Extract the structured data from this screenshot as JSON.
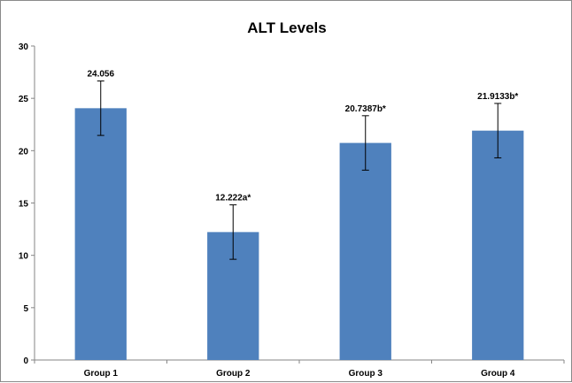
{
  "chart_data": {
    "type": "bar",
    "title": "ALT Levels",
    "xlabel": "",
    "ylabel": "",
    "categories": [
      "Group 1",
      "Group 2",
      "Group 3",
      "Group 4"
    ],
    "values": [
      24.056,
      12.222,
      20.7387,
      21.9133
    ],
    "error": [
      2.6,
      2.6,
      2.6,
      2.6
    ],
    "data_labels": [
      "24.056",
      "12.222a*",
      "20.7387b*",
      "21.9133b*"
    ],
    "ylim": [
      0,
      30
    ],
    "yticks": [
      "0",
      "5",
      "10",
      "15",
      "20",
      "25",
      "30"
    ],
    "grid": false,
    "legend": "none",
    "bar_color": "#4F81BD"
  }
}
